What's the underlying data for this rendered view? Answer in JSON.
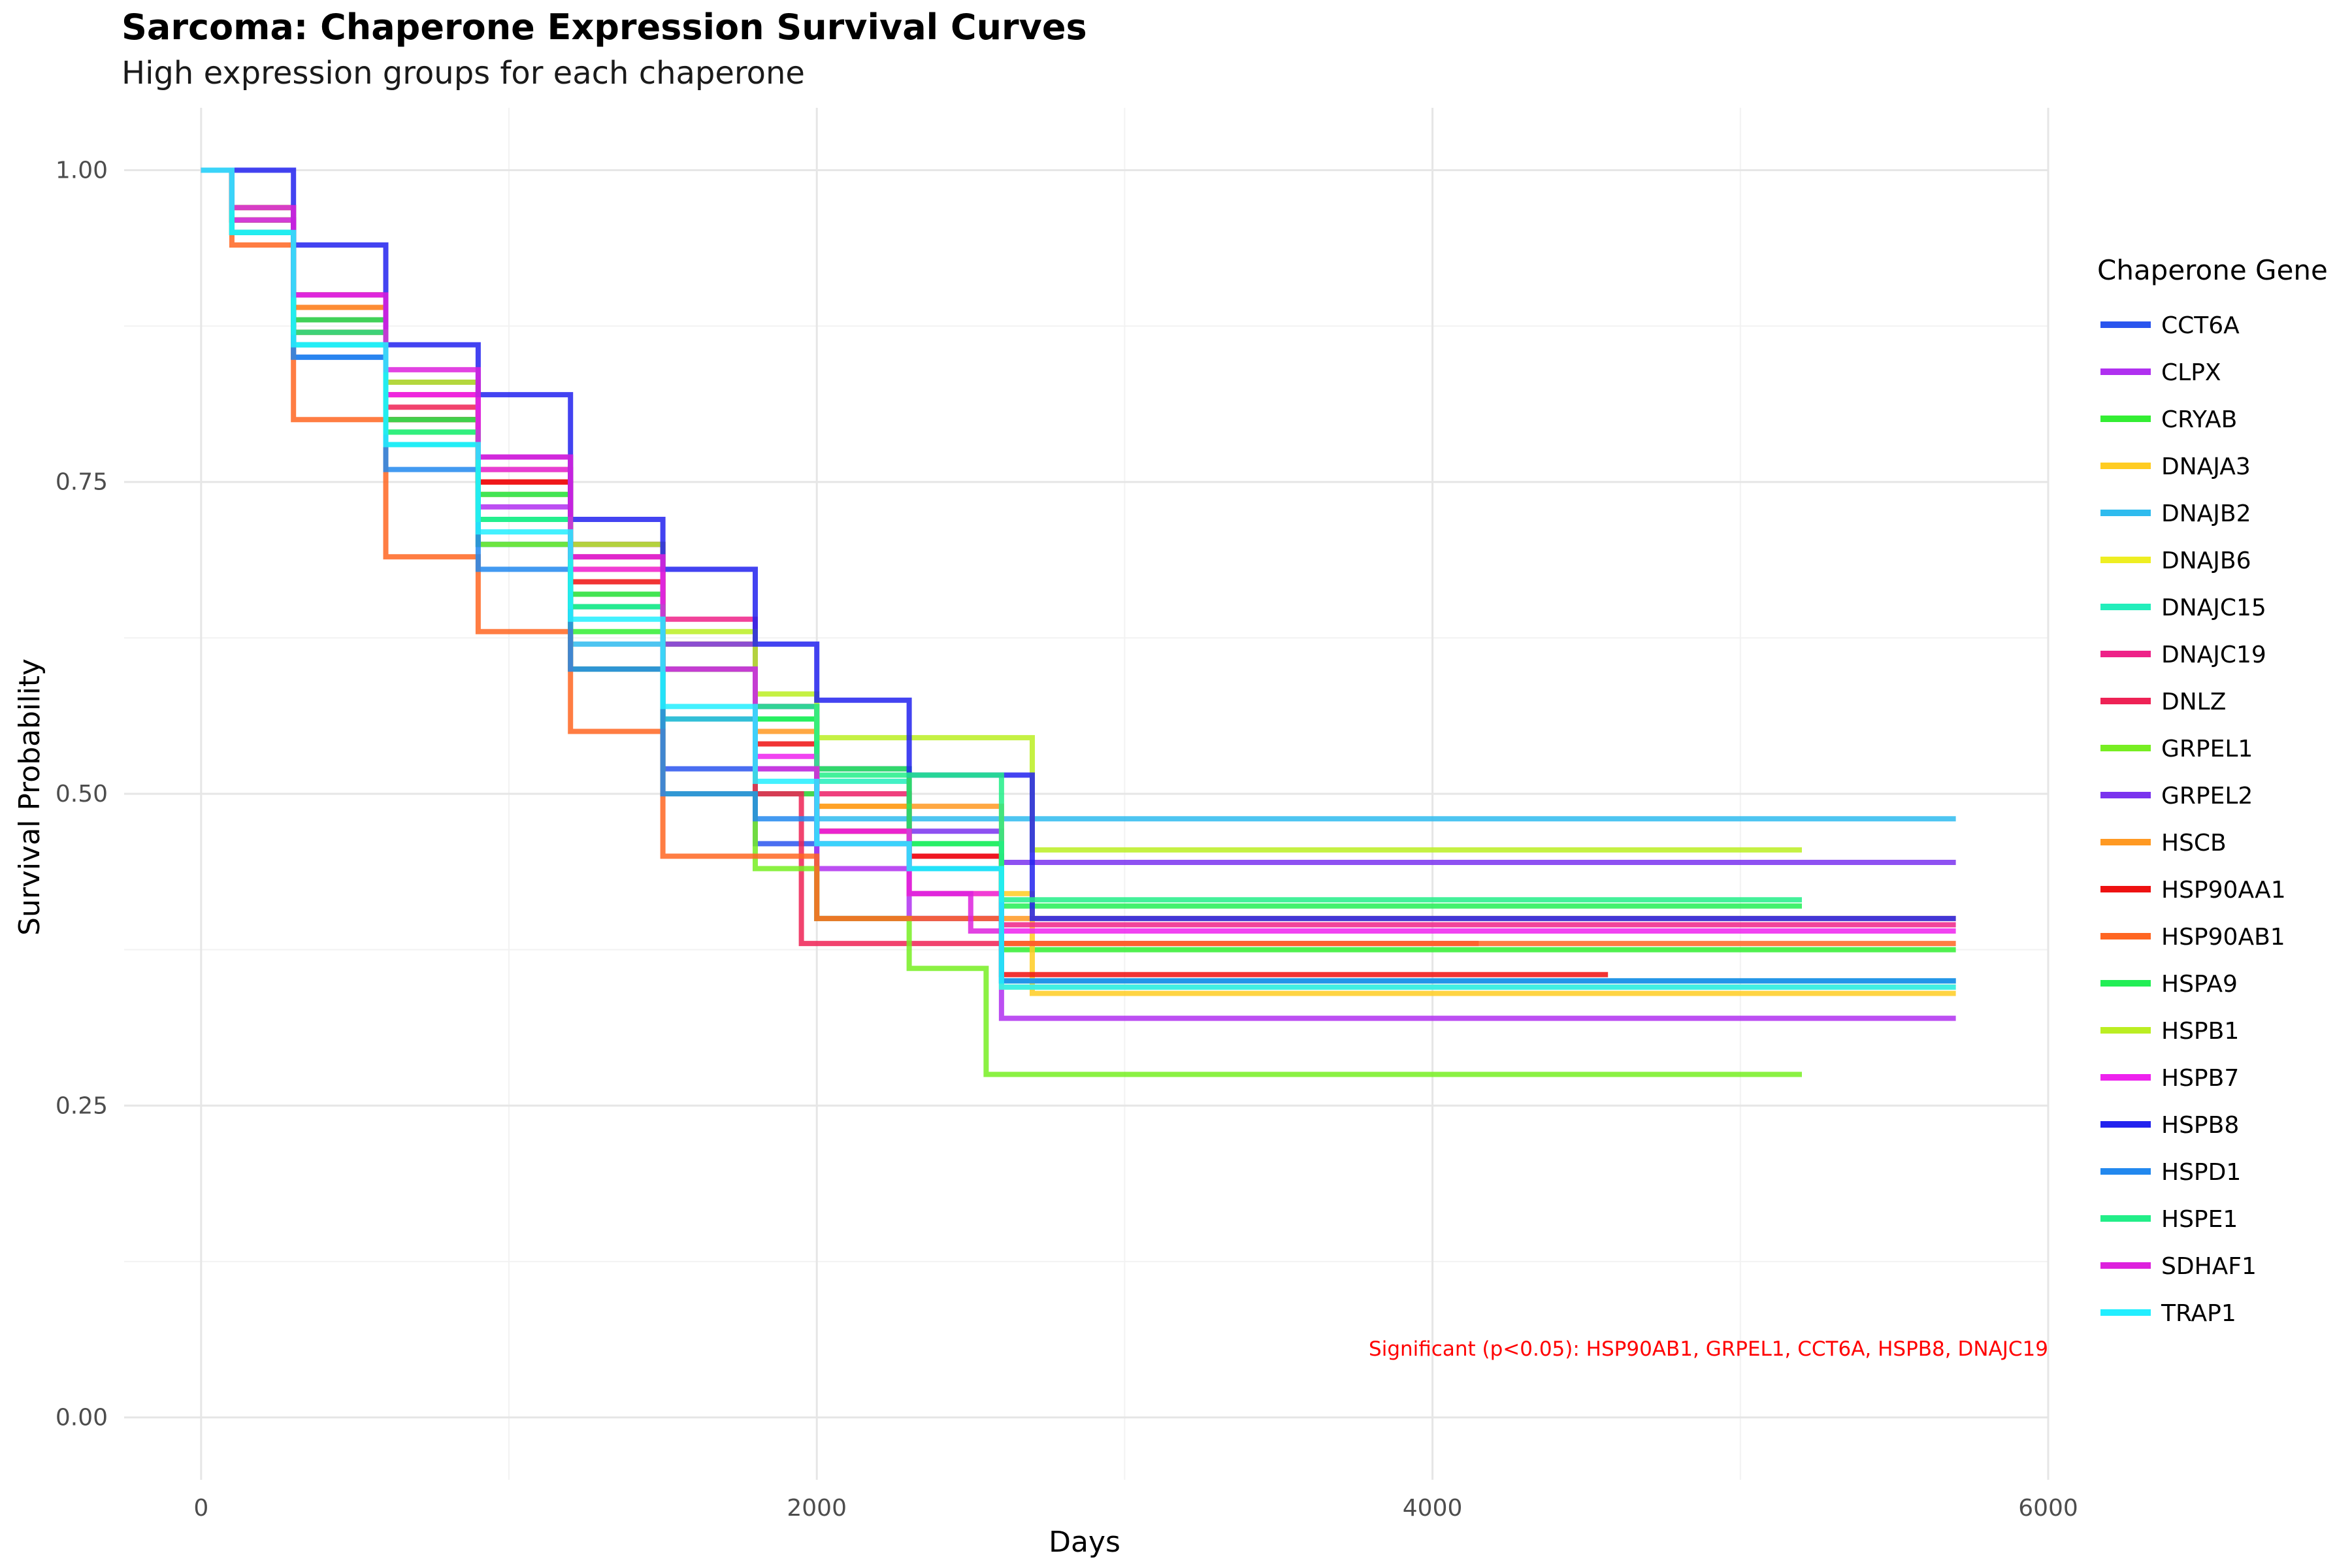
{
  "chart_data": {
    "type": "line",
    "title": "Sarcoma: Chaperone Expression Survival Curves",
    "subtitle": "High expression groups for each chaperone",
    "xlabel": "Days",
    "ylabel": "Survival Probability",
    "xlim": [
      -250,
      6000
    ],
    "ylim": [
      -0.05,
      1.05
    ],
    "x_ticks": [
      0,
      2000,
      4000,
      6000
    ],
    "y_ticks": [
      0,
      0.25,
      0.5,
      0.75,
      1.0
    ],
    "x_tick_labels": [
      "0",
      "2000",
      "4000",
      "6000"
    ],
    "y_tick_labels": [
      "0.00",
      "0.25",
      "0.50",
      "0.75",
      "1.00"
    ],
    "grid": true,
    "legend_title": "Chaperone Gene",
    "legend_position": "right",
    "annotation": "Significant (p<0.05): HSP90AB1, GRPEL1, CCT6A, HSPB8, DNAJC19",
    "series": [
      {
        "name": "CCT6A",
        "color": "#2a55ee",
        "x": [
          0,
          100,
          300,
          600,
          900,
          1200,
          1500,
          1800,
          2000,
          2300,
          2600,
          5700
        ],
        "y": [
          1.0,
          0.95,
          0.85,
          0.78,
          0.7,
          0.6,
          0.52,
          0.46,
          0.4,
          0.4,
          0.35,
          0.35
        ]
      },
      {
        "name": "CLPX",
        "color": "#b030f0",
        "x": [
          0,
          100,
          300,
          600,
          900,
          1200,
          1500,
          1800,
          2000,
          2300,
          2600,
          5700
        ],
        "y": [
          1.0,
          0.96,
          0.88,
          0.8,
          0.73,
          0.65,
          0.56,
          0.5,
          0.44,
          0.4,
          0.32,
          0.32
        ]
      },
      {
        "name": "CRYAB",
        "color": "#33ee33",
        "x": [
          0,
          100,
          300,
          600,
          900,
          1200,
          1500,
          1800,
          2000,
          2300,
          2600,
          5700
        ],
        "y": [
          1.0,
          0.95,
          0.87,
          0.78,
          0.72,
          0.63,
          0.56,
          0.5,
          0.47,
          0.44,
          0.375,
          0.375
        ]
      },
      {
        "name": "DNAJA3",
        "color": "#ffcc22",
        "x": [
          0,
          100,
          300,
          600,
          900,
          1200,
          1500,
          1800,
          2000,
          2300,
          2700,
          5700
        ],
        "y": [
          1.0,
          0.97,
          0.9,
          0.82,
          0.75,
          0.68,
          0.62,
          0.56,
          0.49,
          0.42,
          0.34,
          0.34
        ]
      },
      {
        "name": "DNAJB2",
        "color": "#2fbbee",
        "x": [
          0,
          100,
          300,
          600,
          900,
          1200,
          1500,
          1800,
          2000,
          2400,
          2700,
          5700
        ],
        "y": [
          1.0,
          0.95,
          0.86,
          0.78,
          0.7,
          0.62,
          0.56,
          0.52,
          0.48,
          0.48,
          0.48,
          0.48
        ]
      },
      {
        "name": "DNAJB6",
        "color": "#eeee22",
        "x": [
          0,
          100,
          300,
          600,
          900,
          1200,
          1500,
          1800,
          2000,
          2300,
          2600,
          5700
        ],
        "y": [
          1.0,
          0.97,
          0.9,
          0.83,
          0.77,
          0.7,
          0.62,
          0.56,
          0.5,
          0.45,
          0.345,
          0.345
        ]
      },
      {
        "name": "DNAJC15",
        "color": "#22eebb",
        "x": [
          0,
          100,
          300,
          600,
          900,
          1200,
          1500,
          1800,
          2000,
          2300,
          2600,
          5700
        ],
        "y": [
          1.0,
          0.95,
          0.86,
          0.78,
          0.72,
          0.65,
          0.6,
          0.56,
          0.51,
          0.46,
          0.35,
          0.35
        ]
      },
      {
        "name": "DNAJC19",
        "color": "#ee2288",
        "x": [
          0,
          100,
          300,
          600,
          900,
          1200,
          1500,
          1800,
          2000,
          2300,
          2600,
          5700
        ],
        "y": [
          1.0,
          0.96,
          0.89,
          0.82,
          0.76,
          0.7,
          0.64,
          0.57,
          0.5,
          0.45,
          0.395,
          0.395
        ]
      },
      {
        "name": "DNLZ",
        "color": "#ee2255",
        "x": [
          0,
          100,
          300,
          600,
          900,
          1200,
          1500,
          1800,
          1950,
          2300,
          2600,
          4150
        ],
        "y": [
          1.0,
          0.96,
          0.88,
          0.81,
          0.75,
          0.69,
          0.6,
          0.5,
          0.38,
          0.38,
          0.38,
          0.38
        ]
      },
      {
        "name": "GRPEL1",
        "color": "#77ee22",
        "x": [
          0,
          100,
          300,
          600,
          900,
          1200,
          1500,
          1800,
          2000,
          2300,
          2550,
          5200
        ],
        "y": [
          1.0,
          0.96,
          0.87,
          0.79,
          0.7,
          0.6,
          0.5,
          0.44,
          0.4,
          0.36,
          0.275,
          0.275
        ]
      },
      {
        "name": "GRPEL2",
        "color": "#7a33ee",
        "x": [
          0,
          100,
          300,
          600,
          900,
          1200,
          1500,
          1800,
          2000,
          2300,
          2600,
          5700
        ],
        "y": [
          1.0,
          0.97,
          0.9,
          0.83,
          0.77,
          0.7,
          0.62,
          0.57,
          0.52,
          0.47,
          0.445,
          0.445
        ]
      },
      {
        "name": "HSCB",
        "color": "#ff9922",
        "x": [
          0,
          100,
          300,
          600,
          900,
          1200,
          1500,
          1800,
          2000,
          2300,
          2600,
          5700
        ],
        "y": [
          1.0,
          0.96,
          0.89,
          0.8,
          0.74,
          0.66,
          0.6,
          0.55,
          0.49,
          0.49,
          0.4,
          0.4
        ]
      },
      {
        "name": "HSP90AA1",
        "color": "#ee1111",
        "x": [
          0,
          100,
          300,
          600,
          900,
          1200,
          1500,
          1800,
          2000,
          2300,
          2600,
          4570
        ],
        "y": [
          1.0,
          0.96,
          0.87,
          0.8,
          0.75,
          0.67,
          0.6,
          0.54,
          0.47,
          0.45,
          0.355,
          0.355
        ]
      },
      {
        "name": "HSP90AB1",
        "color": "#ff6622",
        "x": [
          0,
          100,
          300,
          600,
          900,
          1200,
          1500,
          1800,
          2000,
          2300,
          2600,
          5700
        ],
        "y": [
          1.0,
          0.94,
          0.8,
          0.69,
          0.63,
          0.55,
          0.45,
          0.45,
          0.4,
          0.4,
          0.38,
          0.38
        ]
      },
      {
        "name": "HSPA9",
        "color": "#22ee55",
        "x": [
          0,
          100,
          300,
          600,
          900,
          1200,
          1500,
          1800,
          2000,
          2300,
          2600,
          5200
        ],
        "y": [
          1.0,
          0.96,
          0.88,
          0.8,
          0.74,
          0.66,
          0.6,
          0.56,
          0.52,
          0.46,
          0.41,
          0.41
        ]
      },
      {
        "name": "HSPB1",
        "color": "#bbee22",
        "x": [
          0,
          100,
          300,
          600,
          900,
          1200,
          1500,
          1800,
          2000,
          2300,
          2700,
          5200
        ],
        "y": [
          1.0,
          0.97,
          0.9,
          0.83,
          0.76,
          0.7,
          0.63,
          0.58,
          0.545,
          0.545,
          0.455,
          0.455
        ]
      },
      {
        "name": "HSPB7",
        "color": "#ee22ee",
        "x": [
          0,
          100,
          300,
          600,
          900,
          1200,
          1500,
          1800,
          2000,
          2300,
          2600,
          5700
        ],
        "y": [
          1.0,
          0.96,
          0.9,
          0.82,
          0.76,
          0.68,
          0.6,
          0.53,
          0.47,
          0.42,
          0.39,
          0.39
        ]
      },
      {
        "name": "HSPB8",
        "color": "#2222ee",
        "x": [
          0,
          100,
          300,
          600,
          900,
          1200,
          1500,
          1800,
          2000,
          2300,
          2700,
          5700
        ],
        "y": [
          1.0,
          1.0,
          0.94,
          0.86,
          0.82,
          0.72,
          0.68,
          0.62,
          0.575,
          0.515,
          0.4,
          0.4
        ]
      },
      {
        "name": "HSPD1",
        "color": "#2288ee",
        "x": [
          0,
          100,
          300,
          600,
          900,
          1200,
          1500,
          1800,
          2000,
          2300,
          2600,
          5700
        ],
        "y": [
          1.0,
          0.95,
          0.85,
          0.76,
          0.68,
          0.6,
          0.5,
          0.48,
          0.46,
          0.44,
          0.35,
          0.35
        ]
      },
      {
        "name": "HSPE1",
        "color": "#22ee88",
        "x": [
          0,
          100,
          300,
          600,
          900,
          1200,
          1500,
          1800,
          2000,
          2300,
          2600,
          5200
        ],
        "y": [
          1.0,
          0.95,
          0.87,
          0.79,
          0.72,
          0.65,
          0.6,
          0.57,
          0.515,
          0.515,
          0.415,
          0.415
        ]
      },
      {
        "name": "SDHAF1",
        "color": "#dd22dd",
        "x": [
          0,
          100,
          300,
          600,
          900,
          1200,
          1500,
          1800,
          2000,
          2300,
          2500,
          2600
        ],
        "y": [
          1.0,
          0.97,
          0.9,
          0.84,
          0.77,
          0.69,
          0.6,
          0.52,
          0.46,
          0.42,
          0.39,
          0.39
        ]
      },
      {
        "name": "TRAP1",
        "color": "#22eeff",
        "x": [
          0,
          100,
          300,
          600,
          900,
          1200,
          1500,
          1800,
          2000,
          2300,
          2600,
          5700
        ],
        "y": [
          1.0,
          0.95,
          0.86,
          0.78,
          0.71,
          0.64,
          0.57,
          0.51,
          0.46,
          0.44,
          0.345,
          0.345
        ]
      }
    ]
  }
}
